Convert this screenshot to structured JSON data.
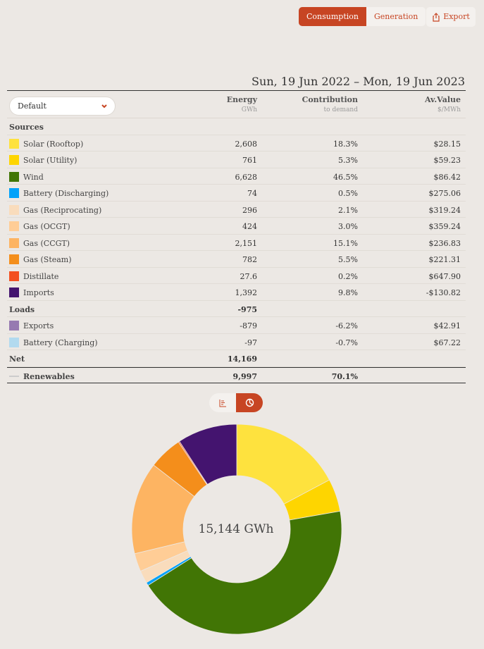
{
  "toolbar": {
    "consumption_label": "Consumption",
    "generation_label": "Generation",
    "export_label": "Export",
    "export_icon": "share-icon"
  },
  "date_range": "Sun, 19 Jun 2022 – Mon, 19 Jun 2023",
  "dropdown": {
    "value": "Default"
  },
  "columns": {
    "energy": {
      "title": "Energy",
      "unit": "GWh"
    },
    "contribution": {
      "title": "Contribution",
      "unit": "to demand"
    },
    "avvalue": {
      "title": "Av.Value",
      "unit": "$/MWh"
    }
  },
  "sections": {
    "sources": "Sources",
    "loads": "Loads",
    "net": "Net"
  },
  "loads_total": "-975",
  "net_total": "14,169",
  "renewables": {
    "label": "Renewables",
    "energy": "9,997",
    "contribution": "70.1%"
  },
  "sources": [
    {
      "name": "Solar (Rooftop)",
      "energy": "2,608",
      "contribution": "18.3%",
      "value": "$28.15",
      "color": "#fee23e"
    },
    {
      "name": "Solar (Utility)",
      "energy": "761",
      "contribution": "5.3%",
      "value": "$59.23",
      "color": "#fed500"
    },
    {
      "name": "Wind",
      "energy": "6,628",
      "contribution": "46.5%",
      "value": "$86.42",
      "color": "#417505"
    },
    {
      "name": "Battery (Discharging)",
      "energy": "74",
      "contribution": "0.5%",
      "value": "$275.06",
      "color": "#00a2fa"
    },
    {
      "name": "Gas (Reciprocating)",
      "energy": "296",
      "contribution": "2.1%",
      "value": "$319.24",
      "color": "#f9dcbc"
    },
    {
      "name": "Gas (OCGT)",
      "energy": "424",
      "contribution": "3.0%",
      "value": "$359.24",
      "color": "#ffcd96"
    },
    {
      "name": "Gas (CCGT)",
      "energy": "2,151",
      "contribution": "15.1%",
      "value": "$236.83",
      "color": "#fdb462"
    },
    {
      "name": "Gas (Steam)",
      "energy": "782",
      "contribution": "5.5%",
      "value": "$221.31",
      "color": "#f48e1b"
    },
    {
      "name": "Distillate",
      "energy": "27.6",
      "contribution": "0.2%",
      "value": "$647.90",
      "color": "#f35020"
    },
    {
      "name": "Imports",
      "energy": "1,392",
      "contribution": "9.8%",
      "value": "-$130.82",
      "color": "#44146f"
    }
  ],
  "loads": [
    {
      "name": "Exports",
      "energy": "-879",
      "contribution": "-6.2%",
      "value": "$42.91",
      "color": "#977ab1"
    },
    {
      "name": "Battery (Charging)",
      "energy": "-97",
      "contribution": "-0.7%",
      "value": "$67.22",
      "color": "#b2daef"
    }
  ],
  "view_toggle": {
    "list_icon": "bar-list-icon",
    "donut_icon": "pie-chart-icon"
  },
  "chart_data": {
    "type": "pie",
    "variant": "donut",
    "center_label": "15,144 GWh",
    "labels": [
      "Solar (Rooftop)",
      "Solar (Utility)",
      "Wind",
      "Battery (Discharging)",
      "Gas (Reciprocating)",
      "Gas (OCGT)",
      "Gas (CCGT)",
      "Gas (Steam)",
      "Distillate",
      "Imports"
    ],
    "values": [
      2608,
      761,
      6628,
      74,
      296,
      424,
      2151,
      782,
      27.6,
      1392
    ],
    "colors": [
      "#fee23e",
      "#fed500",
      "#417505",
      "#00a2fa",
      "#f9dcbc",
      "#ffcd96",
      "#fdb462",
      "#f48e1b",
      "#f35020",
      "#44146f"
    ],
    "unit": "GWh"
  }
}
